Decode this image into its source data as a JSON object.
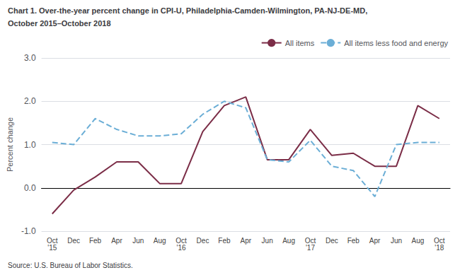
{
  "chart_data": {
    "type": "line",
    "title": "Chart 1. Over-the-year percent change in CPI-U, Philadelphia-Camden-Wilmington, PA-NJ-DE-MD,",
    "subtitle": "October 2015–October 2018",
    "ylabel": "Percent change",
    "annotations": [
      "Source: U.S. Bureau of Labor Statistics."
    ],
    "categories": [
      "Oct\n'15",
      "Dec",
      "Feb",
      "Apr",
      "Jun",
      "Aug",
      "Oct\n'16",
      "Dec",
      "Feb",
      "Apr",
      "Jun",
      "Aug",
      "Oct\n'17",
      "Dec",
      "Feb",
      "Apr",
      "Jun",
      "Aug",
      "Oct\n'18"
    ],
    "series": [
      {
        "name": "All items",
        "color": "#7B2D47",
        "line_style": "solid",
        "values": [
          -0.6,
          -0.05,
          0.25,
          0.6,
          0.6,
          0.1,
          0.1,
          1.3,
          1.9,
          2.1,
          0.65,
          0.65,
          1.35,
          0.75,
          0.8,
          0.5,
          0.5,
          1.9,
          1.6
        ]
      },
      {
        "name": "All items less food and energy",
        "color": "#6BAED6",
        "line_style": "dashed",
        "values": [
          1.05,
          1.0,
          1.6,
          1.35,
          1.2,
          1.2,
          1.25,
          1.7,
          2.0,
          1.85,
          0.65,
          0.6,
          1.1,
          0.5,
          0.4,
          -0.2,
          1.0,
          1.05,
          1.05
        ]
      }
    ],
    "ylim": [
      -1.0,
      3.0
    ],
    "yticks": [
      {
        "value": -1.0,
        "label": "-1.0"
      },
      {
        "value": 0.0,
        "label": "0.0"
      },
      {
        "value": 1.0,
        "label": "1.0"
      },
      {
        "value": 2.0,
        "label": "2.0"
      },
      {
        "value": 3.0,
        "label": "3.0"
      }
    ],
    "grid": true,
    "legend": "upper right"
  }
}
